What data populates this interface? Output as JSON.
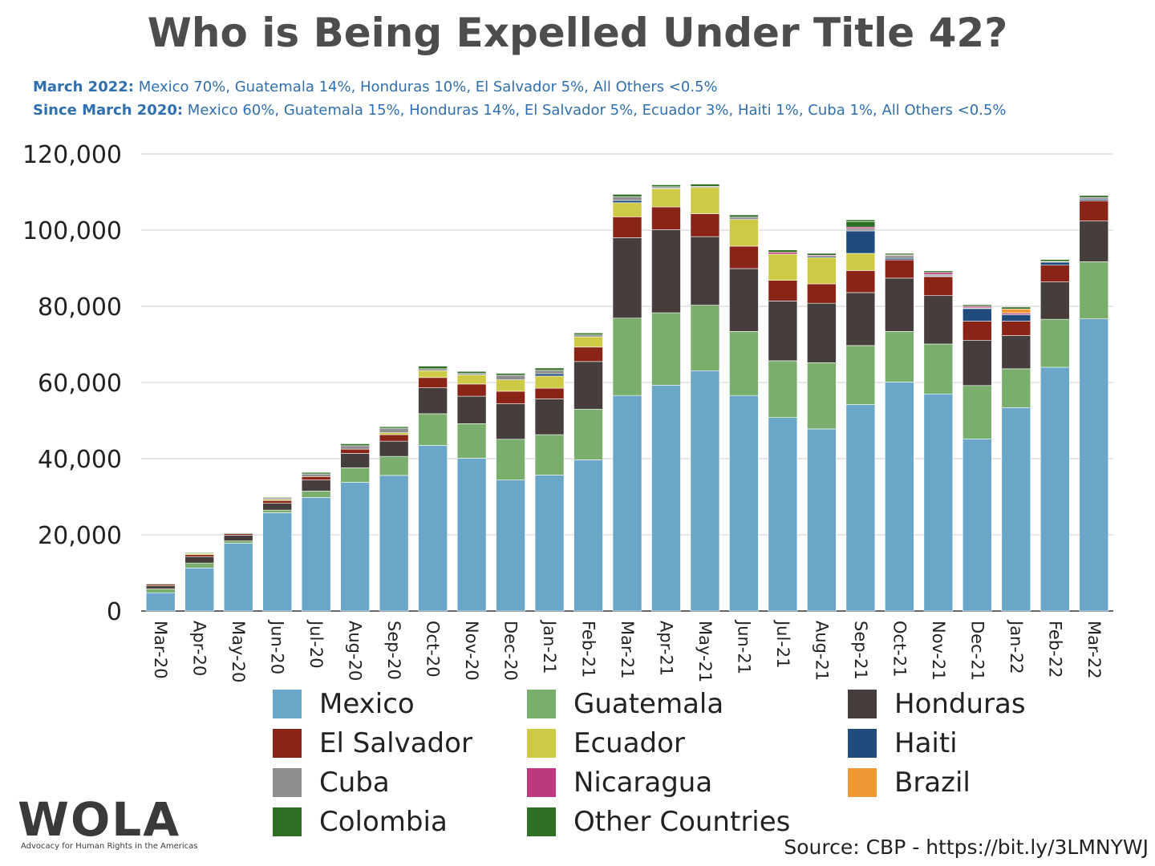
{
  "title": "Who is Being Expelled Under Title 42?",
  "subtitle1": {
    "label": "March 2022:",
    "text": " Mexico 70%, Guatemala 14%, Honduras 10%, El Salvador 5%, All Others <0.5%"
  },
  "subtitle2": {
    "label": "Since March 2020:",
    "text": " Mexico 60%, Guatemala 15%, Honduras 14%, El Salvador 5%, Ecuador 3%, Haiti 1%, Cuba 1%, All Others <0.5%"
  },
  "logo": {
    "text": "WOLA",
    "tagline": "Advocacy for Human Rights in the Americas"
  },
  "source": "Source: CBP - https://bit.ly/3LMNYWJ",
  "chart_data": {
    "type": "bar",
    "stacked": true,
    "ylim": [
      0,
      120000
    ],
    "yticks": [
      0,
      20000,
      40000,
      60000,
      80000,
      100000,
      120000
    ],
    "ytick_labels": [
      "0",
      "20,000",
      "40,000",
      "60,000",
      "80,000",
      "100,000",
      "120,000"
    ],
    "grid": true,
    "legend_position": "bottom",
    "categories": [
      "Mar-20",
      "Apr-20",
      "May-20",
      "Jun-20",
      "Jul-20",
      "Aug-20",
      "Sep-20",
      "Oct-20",
      "Nov-20",
      "Dec-20",
      "Jan-21",
      "Feb-21",
      "Mar-21",
      "Apr-21",
      "May-21",
      "Jun-21",
      "Jul-21",
      "Aug-21",
      "Sep-21",
      "Oct-21",
      "Nov-21",
      "Dec-21",
      "Jan-22",
      "Feb-22",
      "Mar-22"
    ],
    "series": [
      {
        "name": "Mexico",
        "color": "#6aa6c8",
        "values": [
          4800,
          11300,
          17800,
          25800,
          29800,
          33800,
          35600,
          43500,
          40100,
          34400,
          35700,
          39700,
          56600,
          59300,
          63100,
          56600,
          50800,
          47800,
          54200,
          60100,
          57000,
          45200,
          53400,
          64000,
          76700
        ]
      },
      {
        "name": "Guatemala",
        "color": "#7aae6c",
        "values": [
          1000,
          1300,
          600,
          700,
          1700,
          3800,
          5000,
          8300,
          9100,
          10700,
          10600,
          13300,
          20300,
          19000,
          17200,
          16800,
          14900,
          17400,
          15500,
          13300,
          13100,
          14000,
          10200,
          12600,
          15000
        ]
      },
      {
        "name": "Honduras",
        "color": "#463d3d",
        "values": [
          800,
          1700,
          1500,
          1800,
          2900,
          3800,
          4000,
          6800,
          7200,
          9300,
          9400,
          12500,
          21100,
          21800,
          18000,
          16500,
          15700,
          15600,
          13900,
          14000,
          12700,
          11900,
          8700,
          9800,
          10700
        ]
      },
      {
        "name": "El Salvador",
        "color": "#8a2416",
        "values": [
          400,
          500,
          400,
          700,
          900,
          1100,
          1700,
          2700,
          3200,
          3300,
          2800,
          3800,
          5500,
          6000,
          6000,
          5900,
          5400,
          5100,
          5800,
          4800,
          5000,
          5000,
          3800,
          4400,
          5300
        ]
      },
      {
        "name": "Ecuador",
        "color": "#cfca45",
        "values": [
          0,
          300,
          0,
          300,
          0,
          0,
          500,
          1800,
          2400,
          3000,
          3200,
          2700,
          3700,
          4800,
          6900,
          7000,
          6900,
          6900,
          4500,
          0,
          0,
          0,
          0,
          0,
          0
        ]
      },
      {
        "name": "Haiti",
        "color": "#1f4c7c",
        "values": [
          0,
          0,
          0,
          0,
          0,
          0,
          0,
          0,
          0,
          0,
          600,
          0,
          600,
          200,
          0,
          0,
          0,
          300,
          5900,
          400,
          200,
          3300,
          1700,
          800,
          400
        ]
      },
      {
        "name": "Cuba",
        "color": "#8e8e8e",
        "values": [
          0,
          0,
          0,
          400,
          700,
          900,
          1200,
          500,
          400,
          1200,
          900,
          500,
          1000,
          300,
          300,
          600,
          0,
          0,
          600,
          700,
          400,
          200,
          0,
          0,
          500
        ]
      },
      {
        "name": "Nicaragua",
        "color": "#bb3a7e",
        "values": [
          0,
          0,
          0,
          0,
          0,
          0,
          0,
          0,
          0,
          0,
          0,
          0,
          0,
          0,
          0,
          0,
          500,
          300,
          400,
          200,
          500,
          400,
          400,
          0,
          0
        ]
      },
      {
        "name": "Brazil",
        "color": "#ee9933",
        "values": [
          0,
          0,
          0,
          0,
          0,
          0,
          0,
          0,
          0,
          0,
          0,
          0,
          0,
          0,
          0,
          0,
          0,
          0,
          0,
          0,
          0,
          0,
          1100,
          200,
          0
        ]
      },
      {
        "name": "Colombia",
        "color": "#2e6e23",
        "values": [
          0,
          0,
          0,
          0,
          0,
          0,
          0,
          0,
          0,
          0,
          0,
          0,
          0,
          0,
          0,
          0,
          0,
          0,
          1400,
          0,
          0,
          0,
          0,
          0,
          0
        ]
      },
      {
        "name": "Other Countries",
        "color": "#2f7025",
        "values": [
          200,
          200,
          200,
          200,
          400,
          500,
          400,
          700,
          500,
          500,
          600,
          500,
          600,
          500,
          600,
          600,
          600,
          500,
          500,
          400,
          400,
          400,
          500,
          500,
          500
        ]
      }
    ]
  }
}
